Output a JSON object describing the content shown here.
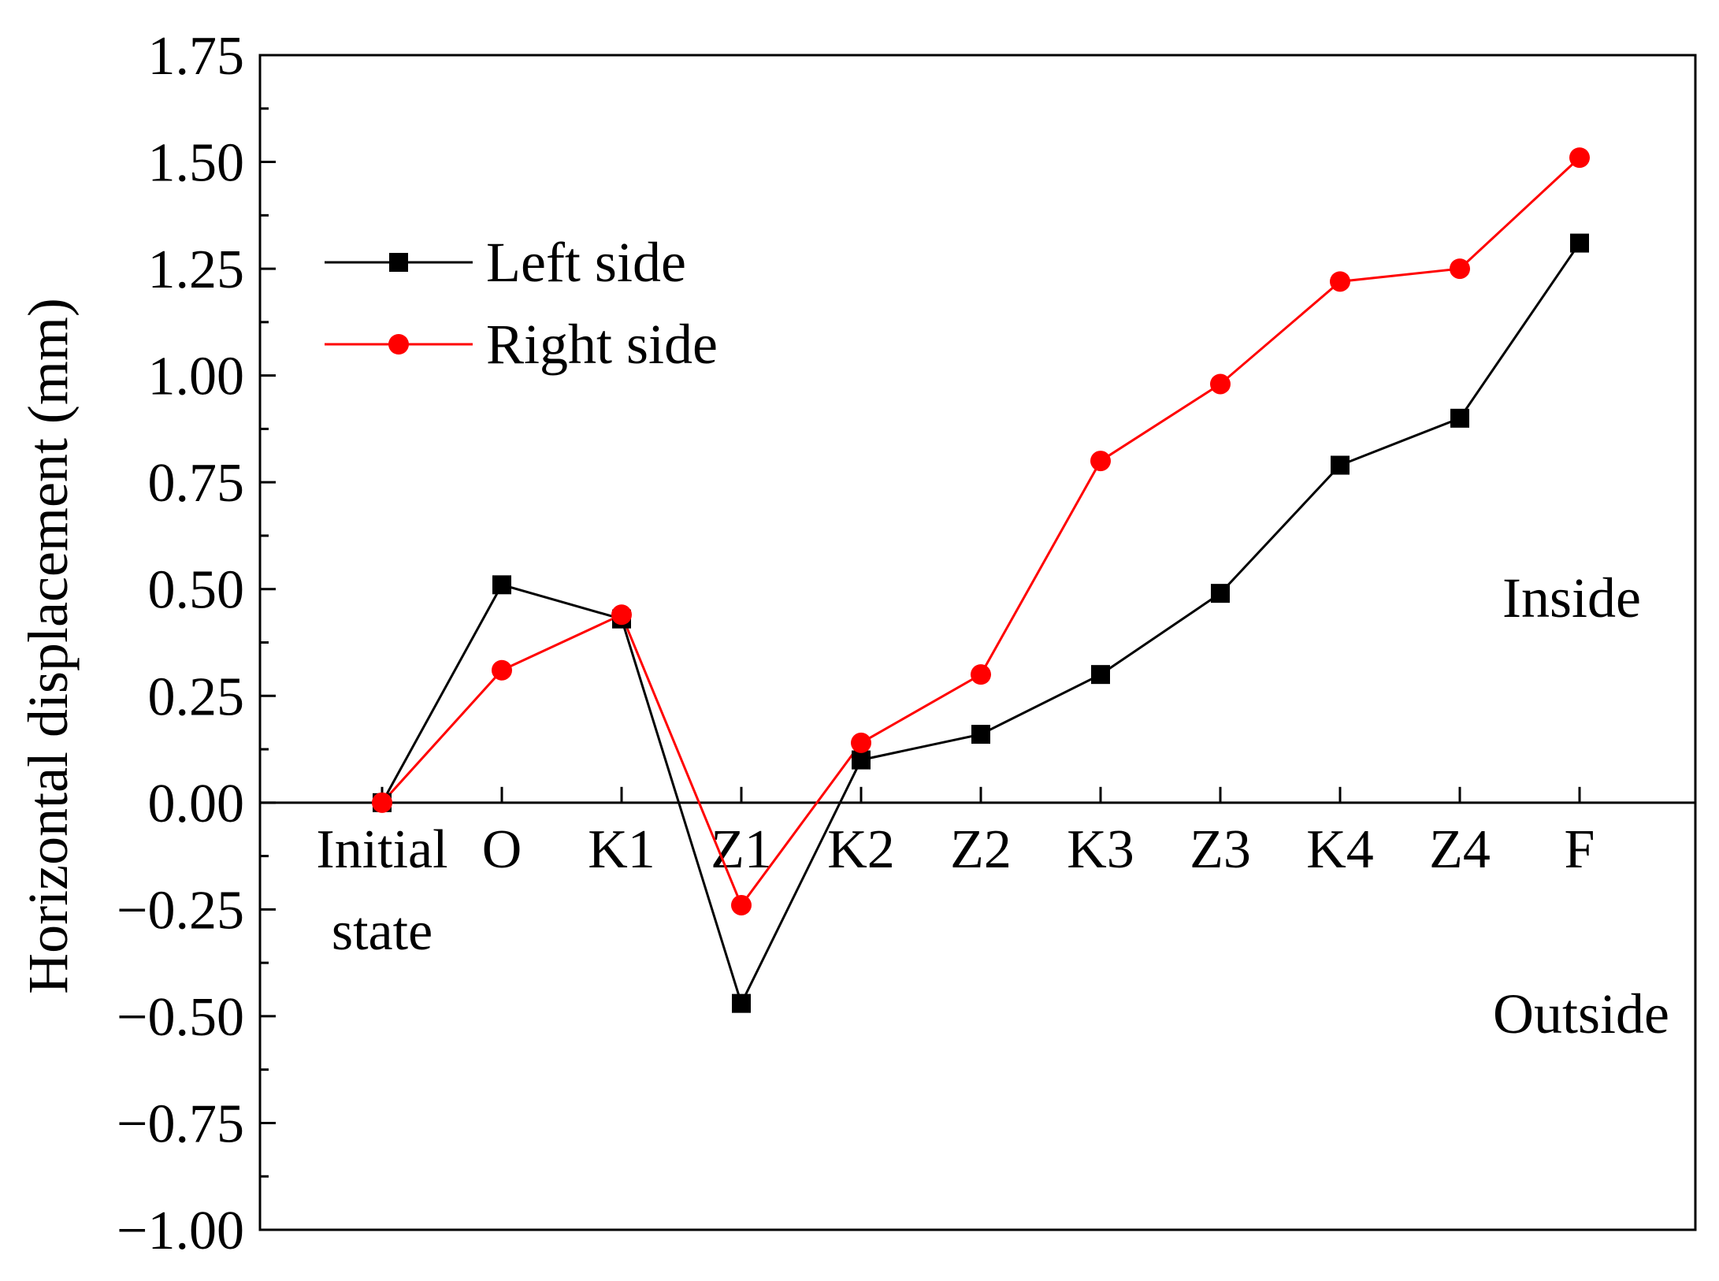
{
  "chart_data": {
    "type": "line",
    "title": "",
    "xlabel": "",
    "ylabel": "Horizontal displacement (mm)",
    "categories": [
      [
        "Initial",
        "state"
      ],
      [
        "O"
      ],
      [
        "K1"
      ],
      [
        "Z1"
      ],
      [
        "K2"
      ],
      [
        "Z2"
      ],
      [
        "K3"
      ],
      [
        "Z3"
      ],
      [
        "K4"
      ],
      [
        "Z4"
      ],
      [
        "F"
      ]
    ],
    "ylim": [
      -1.0,
      1.75
    ],
    "yticks": [
      1.75,
      1.5,
      1.25,
      1.0,
      0.75,
      0.5,
      0.25,
      0.0,
      -0.25,
      -0.5,
      -0.75,
      -1.0
    ],
    "ytick_labels": [
      "1.75",
      "1.50",
      "1.25",
      "1.00",
      "0.75",
      "0.50",
      "0.25",
      "0.00",
      "−0.25",
      "−0.50",
      "−0.75",
      "−1.00"
    ],
    "series": [
      {
        "name": "Left side",
        "color": "#000000",
        "marker": "square",
        "values": [
          0.0,
          0.51,
          0.43,
          -0.47,
          0.1,
          0.16,
          0.3,
          0.49,
          0.79,
          0.9,
          1.31
        ]
      },
      {
        "name": "Right side",
        "color": "#ff0000",
        "marker": "circle",
        "values": [
          0.0,
          0.31,
          0.44,
          -0.24,
          0.14,
          0.3,
          0.8,
          0.98,
          1.22,
          1.25,
          1.51
        ]
      }
    ],
    "legend_position": "top-left",
    "annotations": [
      "Inside",
      "Outside"
    ]
  }
}
